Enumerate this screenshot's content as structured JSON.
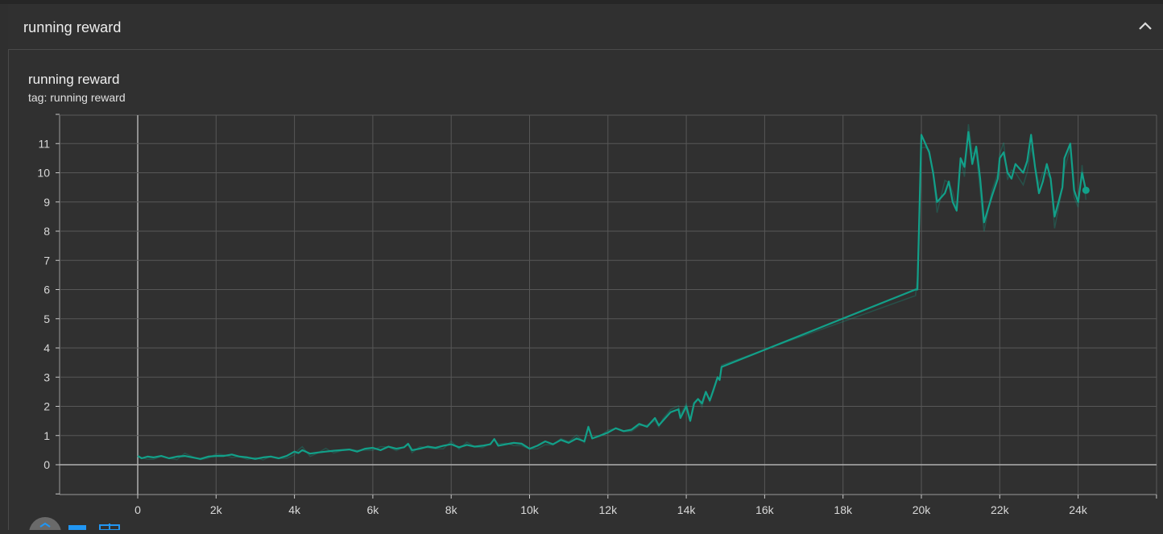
{
  "panel": {
    "title": "running reward"
  },
  "chart": {
    "title": "running reward",
    "tag": "tag: running reward"
  },
  "icons": {
    "collapse": "chevron-up-icon",
    "toolbar": [
      "fit-domain-icon",
      "toggle-log-scale-icon",
      "download-icon"
    ]
  },
  "colors": {
    "series": "#12a089",
    "background": "#303030",
    "grid": "#565656",
    "axis": "#c8c8c8"
  },
  "chart_data": {
    "type": "line",
    "title": "running reward",
    "subtitle": "tag: running reward",
    "xlabel": "",
    "ylabel": "",
    "xlim": [
      -2000,
      27000
    ],
    "ylim": [
      -1,
      12
    ],
    "x_ticks": [
      "0",
      "2k",
      "4k",
      "6k",
      "8k",
      "10k",
      "12k",
      "14k",
      "16k",
      "18k",
      "20k",
      "22k",
      "24k"
    ],
    "y_ticks": [
      "0",
      "1",
      "2",
      "3",
      "4",
      "5",
      "6",
      "7",
      "8",
      "9",
      "10",
      "11"
    ],
    "grid": true,
    "series": [
      {
        "color": "#12a089",
        "x": [
          0,
          100,
          250,
          400,
          600,
          800,
          1000,
          1200,
          1400,
          1600,
          1800,
          2000,
          2200,
          2400,
          2600,
          2800,
          3000,
          3200,
          3400,
          3600,
          3800,
          4000,
          4100,
          4200,
          4400,
          4600,
          4800,
          5000,
          5200,
          5400,
          5600,
          5800,
          6000,
          6200,
          6400,
          6600,
          6800,
          6900,
          7000,
          7200,
          7400,
          7600,
          7800,
          8000,
          8200,
          8400,
          8600,
          8800,
          9000,
          9100,
          9200,
          9400,
          9600,
          9800,
          10000,
          10200,
          10400,
          10600,
          10800,
          11000,
          11200,
          11400,
          11500,
          11600,
          11800,
          12000,
          12200,
          12400,
          12600,
          12800,
          13000,
          13200,
          13300,
          13400,
          13600,
          13800,
          13850,
          14000,
          14100,
          14200,
          14300,
          14400,
          14500,
          14600,
          14700,
          14800,
          14850,
          14900,
          19850,
          19900,
          20000,
          20100,
          20200,
          20300,
          20400,
          20600,
          20700,
          20800,
          20900,
          21000,
          21100,
          21200,
          21300,
          21400,
          21500,
          21600,
          21800,
          21950,
          22000,
          22100,
          22200,
          22300,
          22400,
          22600,
          22700,
          22800,
          22900,
          23000,
          23100,
          23200,
          23300,
          23400,
          23500,
          23600,
          23650,
          23800,
          23900,
          24000,
          24100,
          24200
        ],
        "y": [
          0.3,
          0.22,
          0.28,
          0.25,
          0.3,
          0.22,
          0.28,
          0.3,
          0.25,
          0.2,
          0.28,
          0.3,
          0.3,
          0.35,
          0.28,
          0.25,
          0.2,
          0.25,
          0.28,
          0.22,
          0.3,
          0.45,
          0.4,
          0.5,
          0.38,
          0.42,
          0.45,
          0.48,
          0.5,
          0.52,
          0.45,
          0.55,
          0.58,
          0.5,
          0.62,
          0.55,
          0.6,
          0.72,
          0.5,
          0.55,
          0.62,
          0.58,
          0.65,
          0.7,
          0.6,
          0.68,
          0.62,
          0.65,
          0.7,
          0.88,
          0.65,
          0.7,
          0.75,
          0.72,
          0.55,
          0.65,
          0.8,
          0.7,
          0.85,
          0.75,
          0.9,
          0.8,
          1.3,
          0.9,
          1.0,
          1.1,
          1.25,
          1.15,
          1.2,
          1.4,
          1.3,
          1.6,
          1.35,
          1.5,
          1.8,
          1.9,
          1.6,
          2.0,
          1.5,
          2.1,
          2.25,
          2.1,
          2.5,
          2.2,
          2.6,
          3.0,
          2.9,
          3.35,
          6.0,
          6.0,
          11.3,
          11.0,
          10.7,
          10.0,
          9.0,
          9.3,
          9.7,
          9.0,
          8.7,
          10.5,
          10.2,
          11.4,
          10.3,
          10.9,
          9.8,
          8.3,
          9.2,
          9.8,
          10.5,
          10.7,
          10.0,
          9.8,
          10.3,
          10.0,
          10.4,
          11.3,
          10.2,
          9.3,
          9.7,
          10.3,
          9.8,
          8.5,
          9.0,
          9.5,
          10.5,
          11.0,
          9.4,
          9.0,
          10.0,
          9.4
        ]
      }
    ]
  }
}
